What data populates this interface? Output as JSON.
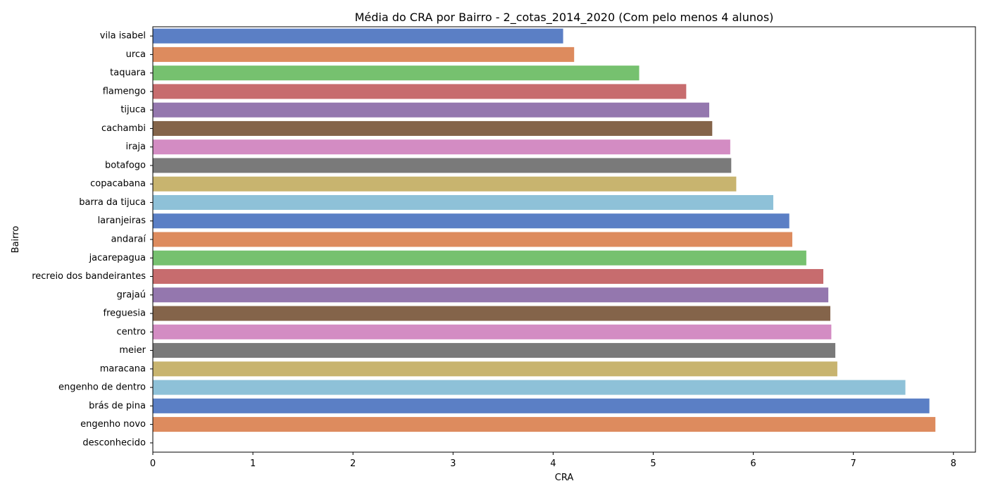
{
  "chart_data": {
    "type": "bar",
    "orientation": "horizontal",
    "title": "Média do CRA por Bairro - 2_cotas_2014_2020 (Com pelo menos 4 alunos)",
    "xlabel": "CRA",
    "ylabel": "Bairro",
    "xlim": [
      0,
      8.22
    ],
    "xticks": [
      0,
      1,
      2,
      3,
      4,
      5,
      6,
      7,
      8
    ],
    "grid": false,
    "legend": "none",
    "categories": [
      "vila isabel",
      "urca",
      "taquara",
      "flamengo",
      "tijuca",
      "cachambi",
      "iraja",
      "botafogo",
      "copacabana",
      "barra da tijuca",
      "laranjeiras",
      "andaraí",
      "jacarepagua",
      "recreio dos bandeirantes",
      "grajaú",
      "freguesia",
      "centro",
      "meier",
      "maracana",
      "engenho de dentro",
      "brás de pina",
      "engenho novo",
      "desconhecido"
    ],
    "values": [
      4.1,
      4.21,
      4.86,
      5.33,
      5.56,
      5.59,
      5.77,
      5.78,
      5.83,
      6.2,
      6.36,
      6.39,
      6.53,
      6.7,
      6.75,
      6.77,
      6.78,
      6.82,
      6.84,
      7.52,
      7.76,
      7.82,
      0
    ],
    "colors": [
      "#5b7fc5",
      "#dd8b5e",
      "#76c16f",
      "#c76c6e",
      "#9477ae",
      "#84644a",
      "#d38cc3",
      "#7a7a7a",
      "#c8b46f",
      "#8ec1d8",
      "#5b7fc5",
      "#dd8b5e",
      "#76c16f",
      "#c76c6e",
      "#9477ae",
      "#84644a",
      "#d38cc3",
      "#7a7a7a",
      "#c8b46f",
      "#8ec1d8",
      "#5b7fc5",
      "#dd8b5e",
      "#76c16f"
    ]
  }
}
